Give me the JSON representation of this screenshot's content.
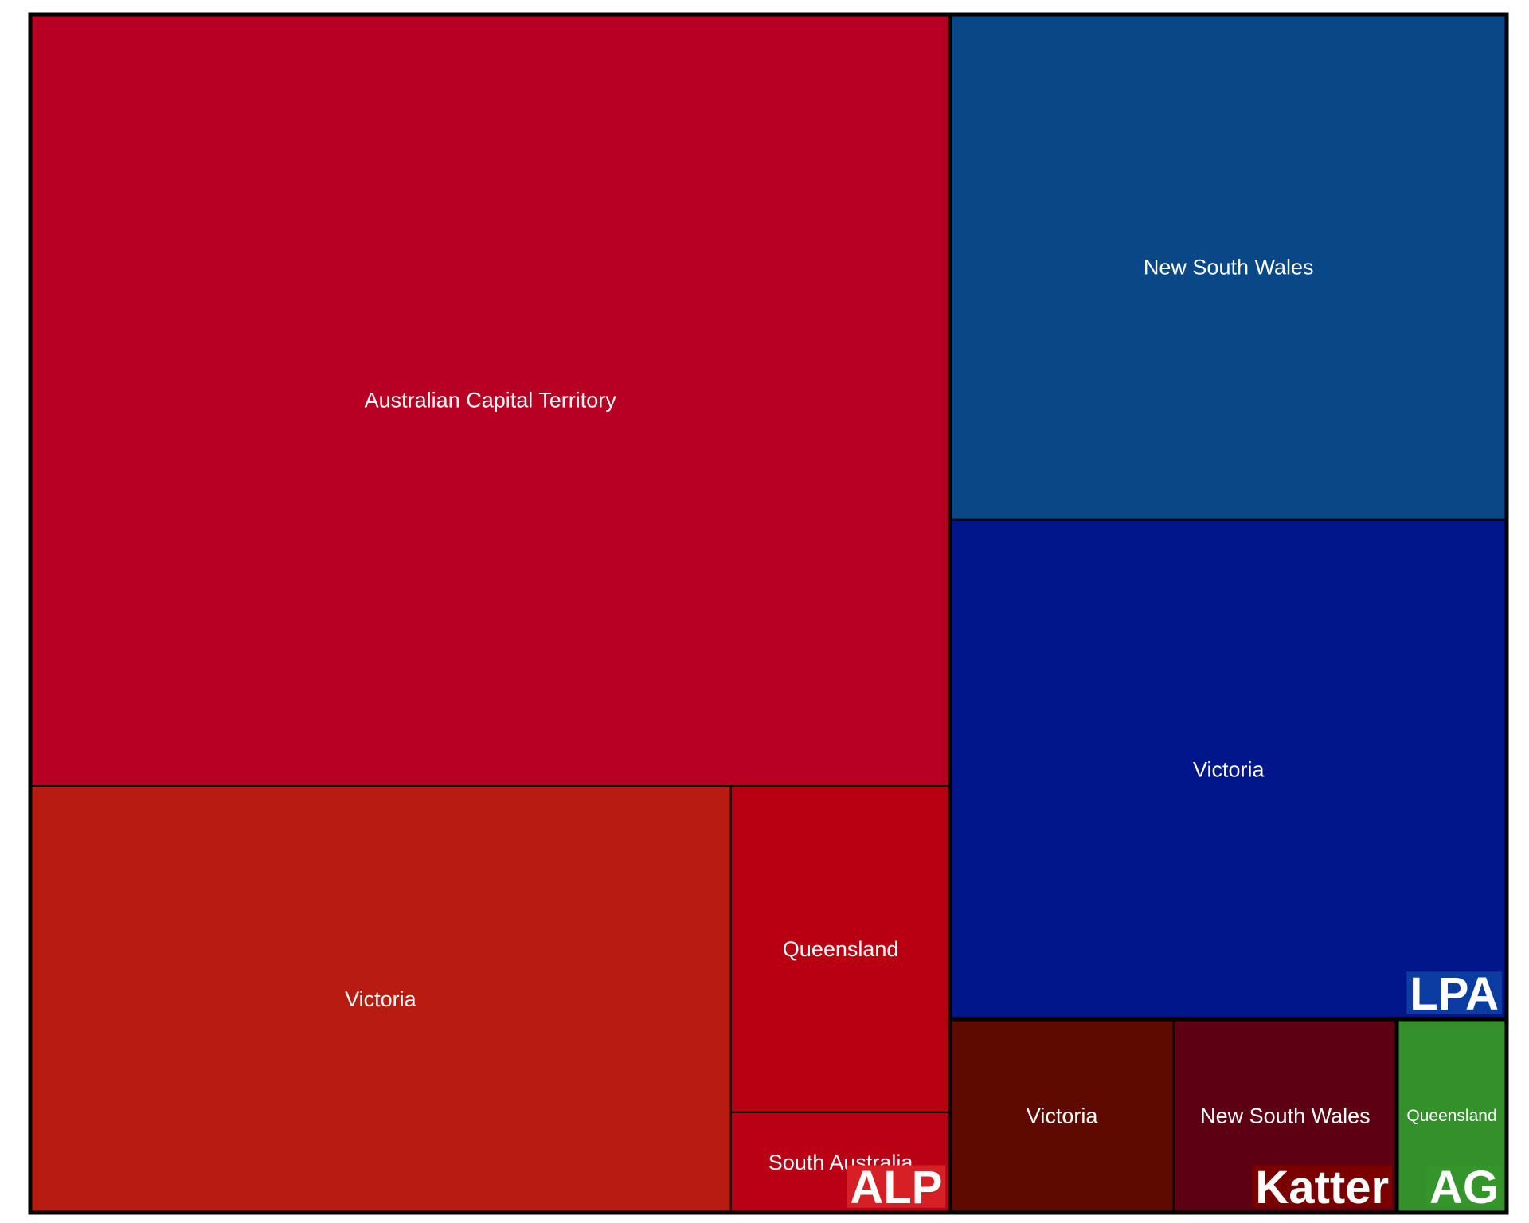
{
  "chart_data": {
    "type": "treemap",
    "groups": [
      {
        "name": "ALP",
        "label_bg": "#d71f26",
        "tiles": [
          {
            "name": "Australian Capital Territory",
            "value": 7.378,
            "color": "#b80022"
          },
          {
            "name": "Victoria",
            "value": 3.106,
            "color": "#b81b0f"
          },
          {
            "name": "Queensland",
            "value": 0.744,
            "color": "#b90010"
          },
          {
            "name": "South Australia",
            "value": 0.229,
            "color": "#ba0015"
          }
        ]
      },
      {
        "name": "LPA",
        "label_bg": "#0b3da0",
        "tiles": [
          {
            "name": "New South Wales",
            "value": 2.922,
            "color": "#0a4786"
          },
          {
            "name": "Victoria",
            "value": 2.886,
            "color": "#00168a"
          }
        ]
      },
      {
        "name": "Katter",
        "label_bg": "#7a0000",
        "tiles": [
          {
            "name": "Victoria",
            "value": 0.449,
            "color": "#5f0a00"
          },
          {
            "name": "New South Wales",
            "value": 0.449,
            "color": "#5e0013"
          }
        ]
      },
      {
        "name": "AG",
        "label_bg": "#33952a",
        "tiles": [
          {
            "name": "Queensland",
            "value": 0.221,
            "color": "#33902a"
          }
        ]
      }
    ]
  }
}
